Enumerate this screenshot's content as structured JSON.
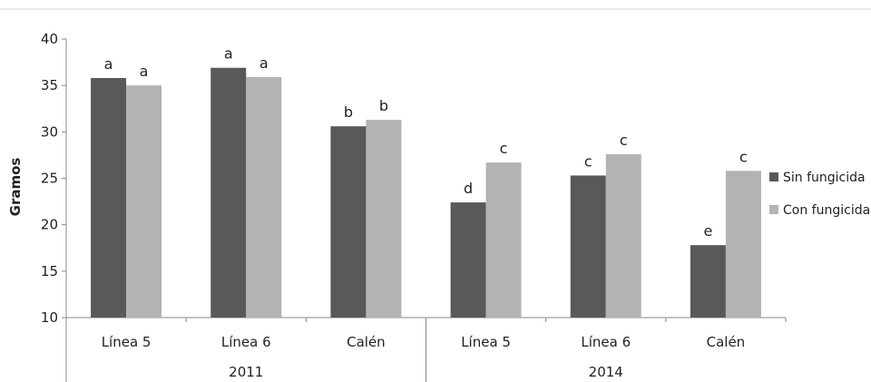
{
  "chart_data": {
    "type": "bar",
    "ylabel": "Gramos",
    "ylim": [
      10,
      40
    ],
    "yticks": [
      "10",
      "15",
      "20",
      "25",
      "30",
      "35",
      "40"
    ],
    "groups": [
      {
        "label": "2011",
        "categories": [
          "Línea 5",
          "Línea 6",
          "Calén"
        ]
      },
      {
        "label": "2014",
        "categories": [
          "Línea 5",
          "Línea 6",
          "Calén"
        ]
      }
    ],
    "series": [
      {
        "name": "Sin fungicida",
        "color": "#595959",
        "values": [
          35.8,
          36.9,
          30.6,
          22.4,
          25.3,
          17.8
        ],
        "labels": [
          "a",
          "a",
          "b",
          "d",
          "c",
          "e"
        ]
      },
      {
        "name": "Con fungicida",
        "color": "#b3b3b3",
        "values": [
          35.0,
          35.9,
          31.3,
          26.7,
          27.6,
          25.8
        ],
        "labels": [
          "a",
          "a",
          "b",
          "c",
          "c",
          "c"
        ]
      }
    ],
    "grid": false,
    "legend_position": "right"
  }
}
